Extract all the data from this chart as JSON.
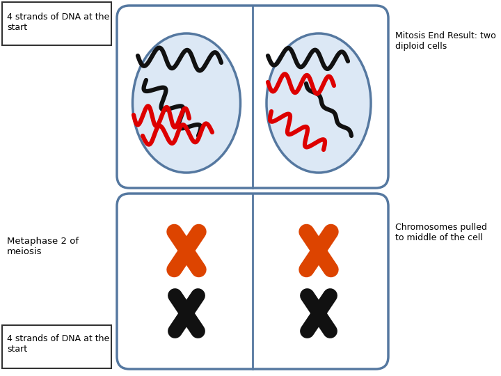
{
  "bg_color": "#ffffff",
  "box_color": "#5578a0",
  "cell_bg": "#dce8f5",
  "dna_black": "#111111",
  "dna_red": "#dd0000",
  "chr_orange": "#dd4400",
  "chr_black": "#111111",
  "label_top_left": "4 strands of DNA at the\nstart",
  "label_top_right": "Mitosis End Result: two\ndiploid cells",
  "label_bottom_left": "Metaphase 2 of\nmeiosis",
  "label_bottom_right": "Chromosomes pulled\nto middle of the cell",
  "label_bottom_box": "4 strands of DNA at the\nstart"
}
